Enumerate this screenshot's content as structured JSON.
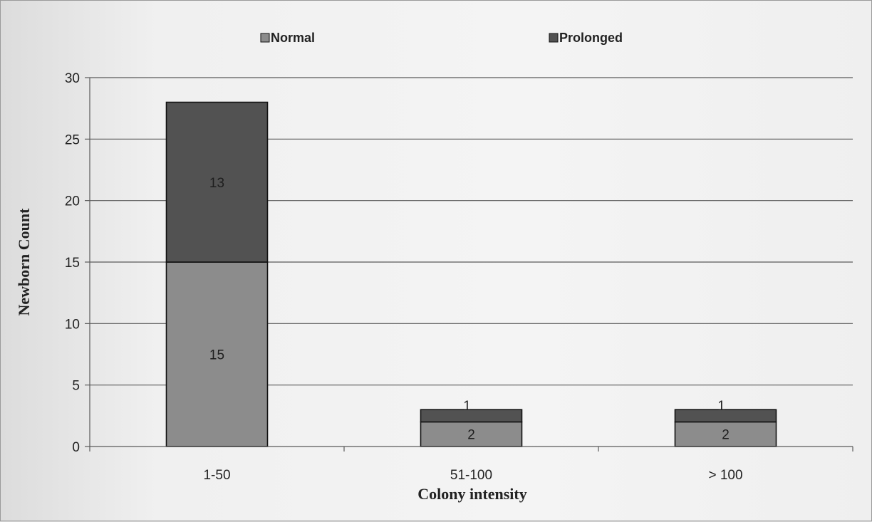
{
  "chart_data": {
    "type": "bar",
    "stacked": true,
    "categories": [
      "1-50",
      "51-100",
      "> 100"
    ],
    "series": [
      {
        "name": "Normal",
        "values": [
          15,
          2,
          2
        ]
      },
      {
        "name": "Prolonged",
        "values": [
          13,
          1,
          1
        ]
      }
    ],
    "xlabel": "Colony intensity",
    "ylabel": "Newborn Count",
    "ylim": [
      0,
      30
    ],
    "yticks": [
      0,
      5,
      10,
      15,
      20,
      25,
      30
    ],
    "grid": true,
    "legend_position": "top",
    "colors": {
      "Normal": "#8c8c8c",
      "Prolonged": "#525252",
      "grid": "#5a5a5a"
    }
  }
}
